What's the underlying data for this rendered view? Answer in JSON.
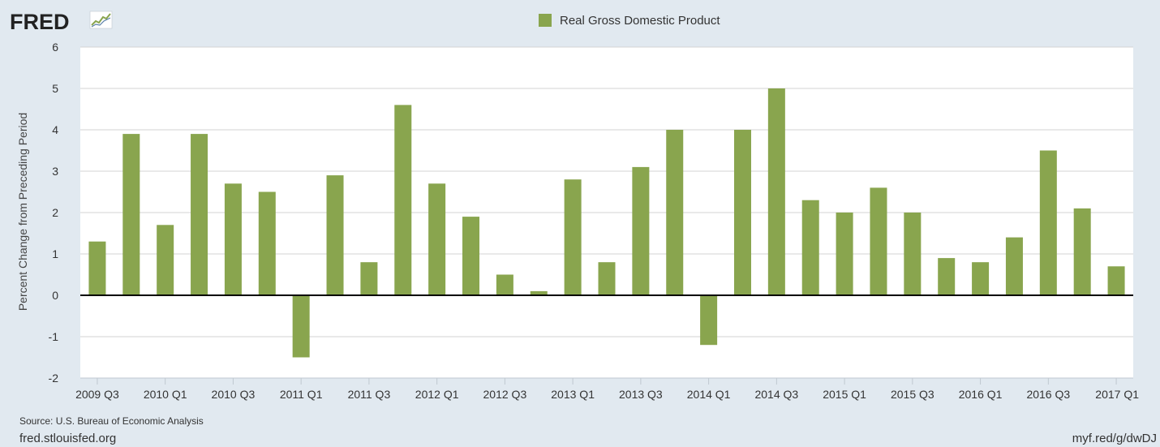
{
  "branding": {
    "logo_text": "FRED",
    "footer_left": "fred.stlouisfed.org",
    "footer_right": "myf.red/g/dwDJ",
    "source": "Source: U.S. Bureau of Economic Analysis"
  },
  "colors": {
    "background": "#e1e9f0",
    "plot_background": "#ffffff",
    "bar": "#89a54e",
    "grid": "#d3d3d3",
    "zero_line": "#000000"
  },
  "chart_data": {
    "type": "bar",
    "series": [
      {
        "name": "Real Gross Domestic Product",
        "values": [
          1.3,
          3.9,
          1.7,
          3.9,
          2.7,
          2.5,
          -1.5,
          2.9,
          0.8,
          4.6,
          2.7,
          1.9,
          0.5,
          0.1,
          2.8,
          0.8,
          3.1,
          4.0,
          -1.2,
          4.0,
          5.0,
          2.3,
          2.0,
          2.6,
          2.0,
          0.9,
          0.8,
          1.4,
          3.5,
          2.1,
          0.7
        ]
      }
    ],
    "categories": [
      "2009 Q3",
      "2009 Q4",
      "2010 Q1",
      "2010 Q2",
      "2010 Q3",
      "2010 Q4",
      "2011 Q1",
      "2011 Q2",
      "2011 Q3",
      "2011 Q4",
      "2012 Q1",
      "2012 Q2",
      "2012 Q3",
      "2012 Q4",
      "2013 Q1",
      "2013 Q2",
      "2013 Q3",
      "2013 Q4",
      "2014 Q1",
      "2014 Q2",
      "2014 Q3",
      "2014 Q4",
      "2015 Q1",
      "2015 Q2",
      "2015 Q3",
      "2015 Q4",
      "2016 Q1",
      "2016 Q2",
      "2016 Q3",
      "2016 Q4",
      "2017 Q1"
    ],
    "x_tick_labels": [
      "2009 Q3",
      "2010 Q1",
      "2010 Q3",
      "2011 Q1",
      "2011 Q3",
      "2012 Q1",
      "2012 Q3",
      "2013 Q1",
      "2013 Q3",
      "2014 Q1",
      "2014 Q3",
      "2015 Q1",
      "2015 Q3",
      "2016 Q1",
      "2016 Q3",
      "2017 Q1"
    ],
    "y_ticks": [
      -2,
      -1,
      0,
      1,
      2,
      3,
      4,
      5,
      6
    ],
    "ylim": [
      -2,
      6
    ],
    "ylabel": "Percent Change from Preceding Period",
    "xlabel": "",
    "grid": true,
    "legend_position": "top-center"
  }
}
